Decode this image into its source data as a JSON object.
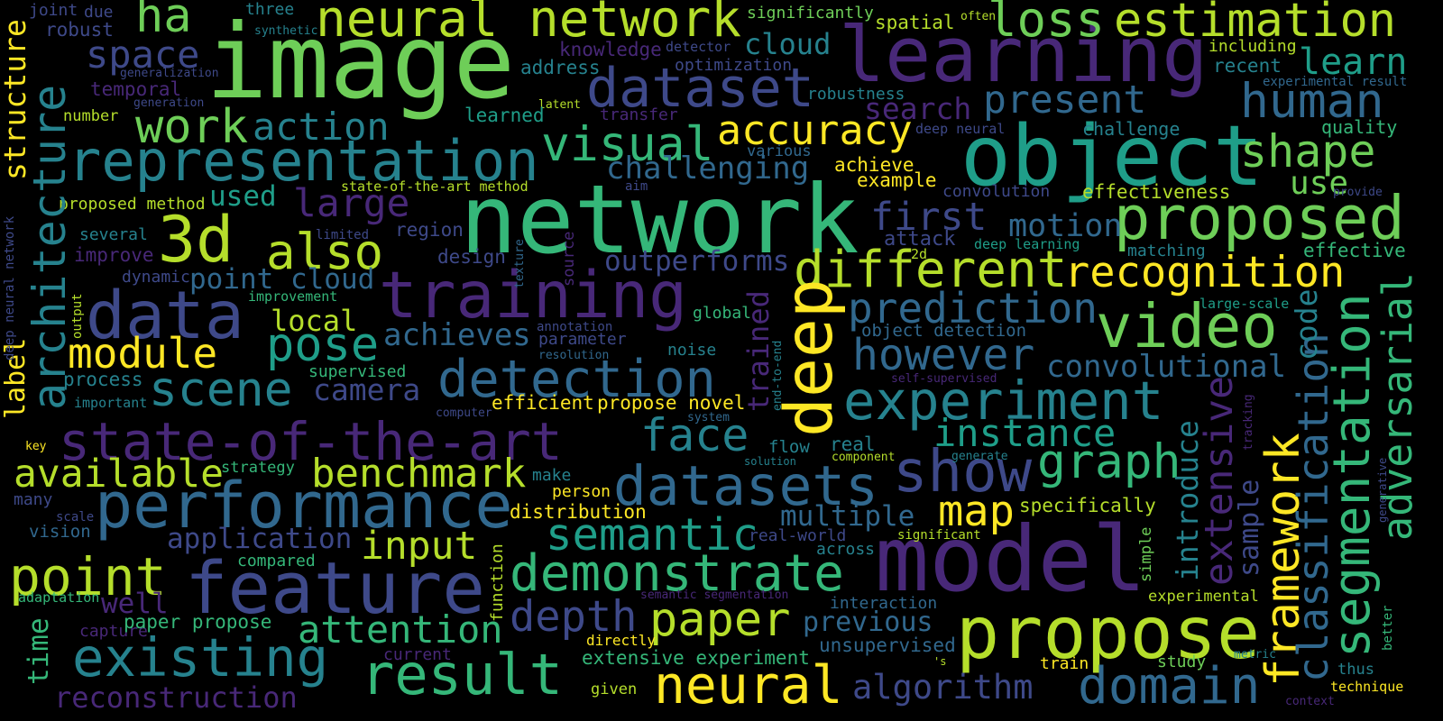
{
  "word_cloud": {
    "words": [
      "image",
      "network",
      "learning",
      "object",
      "model",
      "propose",
      "training",
      "state-of-the-art",
      "data",
      "feature",
      "performance",
      "representation",
      "neural network",
      "estimation",
      "loss",
      "dataset",
      "3d",
      "also",
      "visual",
      "accuracy",
      "work",
      "action",
      "ha",
      "space",
      "proposed",
      "different",
      "recognition",
      "video",
      "prediction",
      "however",
      "experiment",
      "detection",
      "deep",
      "show",
      "datasets",
      "face",
      "graph",
      "instance",
      "semantic",
      "demonstrate",
      "paper",
      "depth",
      "neural",
      "algorithm",
      "domain",
      "result",
      "existing",
      "reconstruction",
      "point",
      "attention",
      "input",
      "benchmark",
      "available",
      "scene",
      "pose",
      "module",
      "local",
      "point cloud",
      "large",
      "used",
      "proposed method",
      "architecture",
      "structure",
      "label",
      "time",
      "framework",
      "segmentation",
      "classification",
      "adversarial",
      "extensive",
      "introduce",
      "sample",
      "code",
      "trained",
      "human",
      "shape",
      "present",
      "learn",
      "use",
      "effective",
      "quality",
      "recent",
      "including",
      "experimental result",
      "first",
      "motion",
      "attack",
      "search",
      "challenging",
      "cloud",
      "spatial",
      "often",
      "significantly",
      "knowledge",
      "detector",
      "optimization",
      "address",
      "robustness",
      "latent",
      "transfer",
      "deep neural",
      "challenge",
      "achieve",
      "example",
      "various",
      "aim",
      "convolution",
      "effectiveness",
      "provide",
      "deep learning",
      "2d",
      "matching",
      "large-scale",
      "object detection",
      "convolutional",
      "self-supervised",
      "tracking",
      "generative",
      "better",
      "thus",
      "technique",
      "context",
      "metric",
      "study",
      "train",
      "experimental",
      "simple",
      "specifically",
      "map",
      "multiple",
      "real",
      "component",
      "generate",
      "flow",
      "solution",
      "real-world",
      "significant",
      "across",
      "interaction",
      "previous",
      "unsupervised",
      "extensive experiment",
      "directly",
      "given",
      "'s",
      "current",
      "capture",
      "paper propose",
      "well",
      "adaptation",
      "compared",
      "application",
      "vision",
      "scale",
      "many",
      "key",
      "strategy",
      "important",
      "process",
      "supervised",
      "camera",
      "achieves",
      "outperforms",
      "design",
      "region",
      "limited",
      "several",
      "improve",
      "dynamic",
      "improvement",
      "output",
      "deep neural network",
      "state-of-the-art method",
      "generation",
      "number",
      "temporal",
      "generalization",
      "robust",
      "joint",
      "due",
      "synthetic",
      "three",
      "learned",
      "texture",
      "source",
      "global",
      "end-to-end",
      "annotation",
      "parameter",
      "resolution",
      "noise",
      "system",
      "computer",
      "efficient",
      "propose novel",
      "make",
      "person",
      "distribution",
      "function",
      "semantic segmentation"
    ]
  }
}
